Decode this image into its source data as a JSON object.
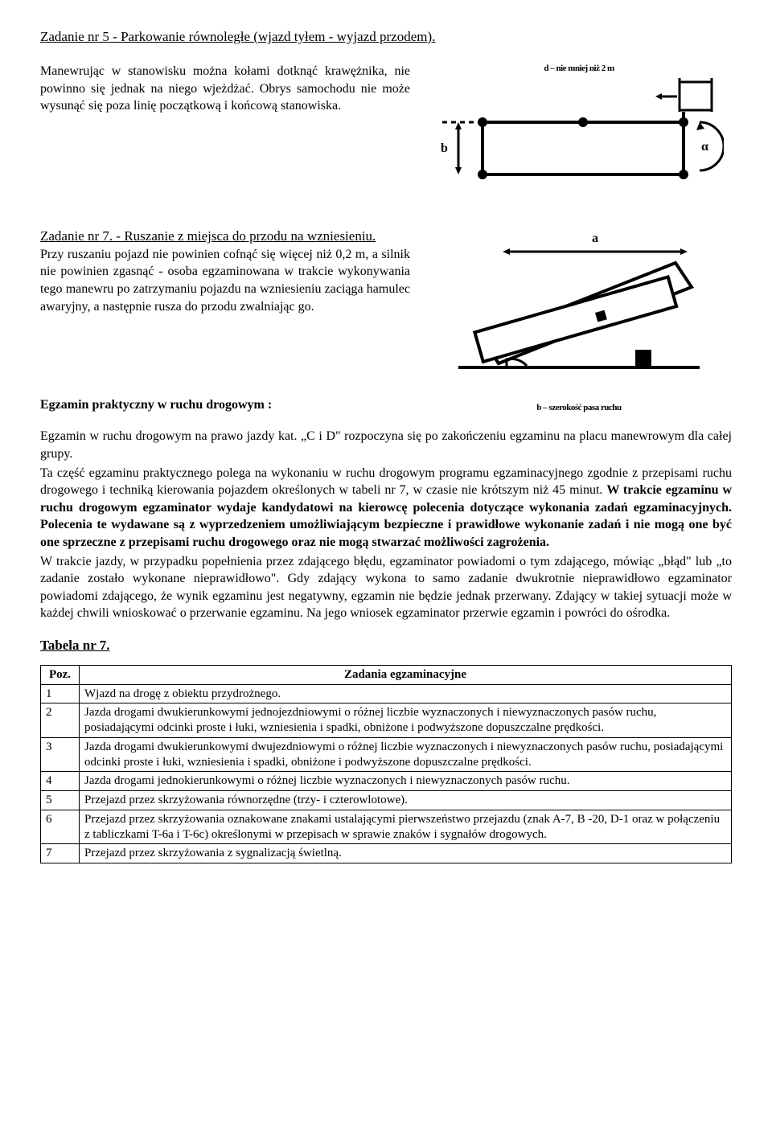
{
  "task5": {
    "title": "Zadanie nr 5 - Parkowanie równoległe (wjazd tyłem - wyjazd przodem).",
    "body": "Manewrując w stanowisku można kołami dotknąć krawężnika, nie powinno się jednak na niego wjeżdżać. Obrys samochodu nie może wysunąć się poza linię początkową i końcową stanowiska.",
    "diagram_caption_top": "d – nie mniej niż 2 m",
    "diagram": {
      "label_d": "d",
      "label_b": "b",
      "label_alpha": "α"
    }
  },
  "task7": {
    "title": "Zadanie nr 7. - Ruszanie z miejsca do przodu na wzniesieniu.",
    "body": "Przy ruszaniu pojazd nie powinien cofnąć się więcej niż 0,2 m, a silnik nie powinien zgasnąć - osoba egzaminowana w trakcie wykonywania tego manewru po zatrzymaniu pojazdu na wzniesieniu zaciąga hamulec awaryjny, a następnie rusza do przodu zwalniając go.",
    "diagram": {
      "label_a": "a"
    }
  },
  "practical": {
    "heading": "Egzamin praktyczny w ruchu drogowym :",
    "para1": "Egzamin w ruchu drogowym na prawo jazdy kat. „C i D\" rozpoczyna się po zakończeniu egzaminu na placu manewrowym dla całej grupy.",
    "para2a": "Ta część egzaminu praktycznego polega na wykonaniu w ruchu drogowym programu egzaminacyjnego zgodnie z przepisami ruchu drogowego i techniką kierowania pojazdem określonych w tabeli nr 7, w czasie nie krótszym niż 45 minut. ",
    "para2b": "W trakcie egzaminu w ruchu drogowym egzaminator wydaje kandydatowi na kierowcę polecenia dotyczące wykonania zadań egzaminacyjnych. Polecenia te wydawane są z wyprzedzeniem umożliwiającym bezpieczne i prawidłowe wykonanie zadań i nie mogą one być one sprzeczne z przepisami ruchu drogowego oraz nie mogą stwarzać możliwości zagrożenia.",
    "para3": "W trakcie jazdy, w przypadku popełnienia przez zdającego błędu, egzaminator powiadomi o tym zdającego, mówiąc „błąd\" lub „to zadanie zostało wykonane nieprawidłowo\". Gdy zdający wykona to samo zadanie dwukrotnie nieprawidłowo egzaminator powiadomi zdającego, że wynik egzaminu jest negatywny, egzamin nie będzie jednak przerwany. Zdający w takiej sytuacji może w każdej chwili wnioskować o przerwanie egzaminu. Na jego wniosek egzaminator przerwie egzamin i powróci do ośrodka.",
    "legend": "b – szerokość pasa ruchu"
  },
  "table": {
    "title": "Tabela nr 7.",
    "headers": {
      "col1": "Poz.",
      "col2": "Zadania egzaminacyjne"
    },
    "rows": [
      {
        "n": "1",
        "t": "Wjazd na drogę z obiektu przydrożnego."
      },
      {
        "n": "2",
        "t": "Jazda drogami dwukierunkowymi jednojezdniowymi o różnej liczbie wyznaczonych i niewyznaczonych pasów ruchu, posiadającymi odcinki proste i łuki, wzniesienia i spadki, obniżone i podwyższone dopuszczalne prędkości."
      },
      {
        "n": "3",
        "t": "Jazda drogami dwukierunkowymi dwujezdniowymi o różnej liczbie wyznaczonych i niewyznaczonych pasów ruchu, posiadającymi odcinki proste i łuki, wzniesienia i spadki, obniżone i podwyższone dopuszczalne prędkości."
      },
      {
        "n": "4",
        "t": "Jazda drogami jednokierunkowymi o różnej liczbie wyznaczonych i niewyznaczonych pasów ruchu."
      },
      {
        "n": "5",
        "t": "Przejazd przez skrzyżowania równorzędne (trzy- i czterowlotowe)."
      },
      {
        "n": "6",
        "t": "Przejazd przez skrzyżowania oznakowane znakami ustalającymi pierwszeństwo przejazdu (znak A-7, B -20, D-1 oraz w połączeniu z tabliczkami T-6a i T-6c) określonymi w przepisach w sprawie znaków i sygnałów drogowych."
      },
      {
        "n": "7",
        "t": "Przejazd przez skrzyżowania z sygnalizacją świetlną."
      }
    ]
  }
}
